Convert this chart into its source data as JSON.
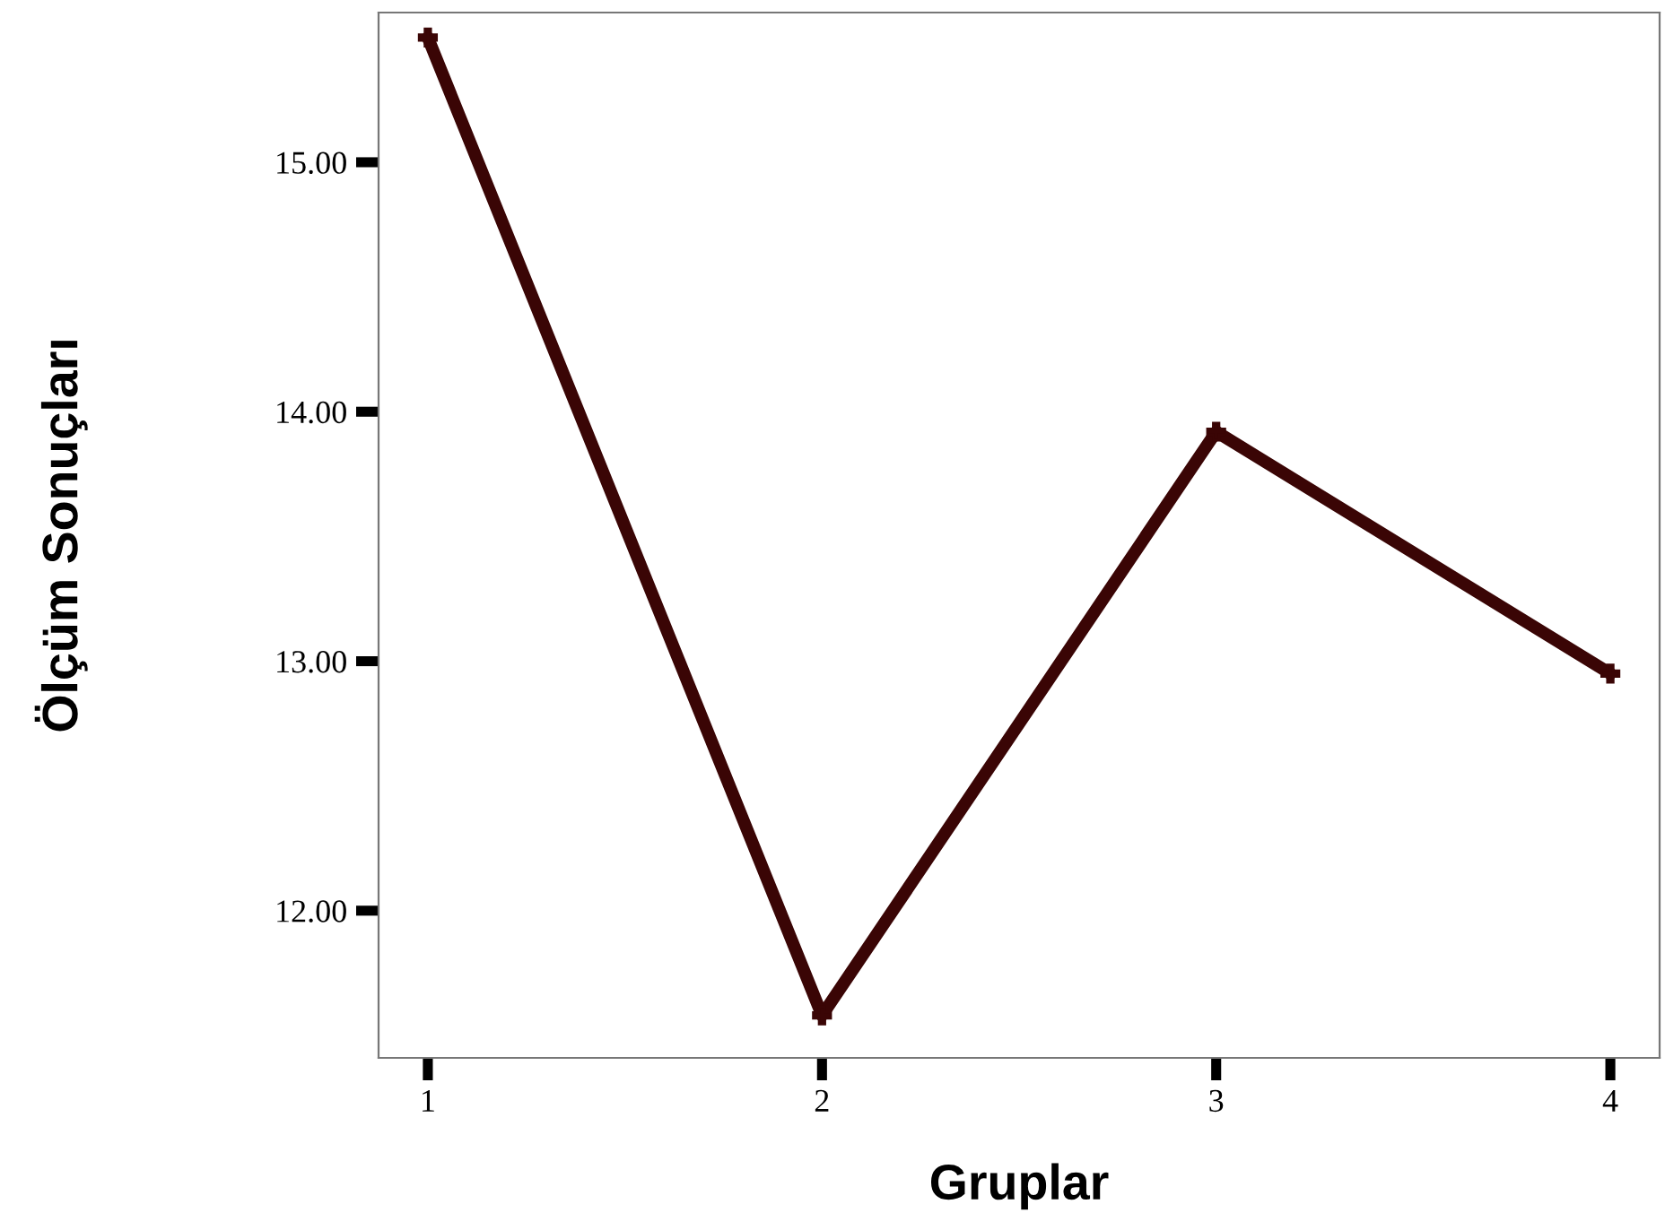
{
  "chart_data": {
    "type": "line",
    "xlabel": "Gruplar",
    "ylabel": "Ölçüm Sonuçları",
    "x": [
      1,
      2,
      3,
      4
    ],
    "series": [
      {
        "color": "#3a0505",
        "values": [
          15.5,
          11.58,
          13.92,
          12.95
        ]
      }
    ],
    "xlim": [
      0.875,
      4.125
    ],
    "xticks": [
      1,
      2,
      3,
      4
    ],
    "ylim": [
      11.41,
      15.6
    ],
    "yticks": [
      {
        "value": 12,
        "label": "12.00"
      },
      {
        "value": 13,
        "label": "13.00"
      },
      {
        "value": 14,
        "label": "14.00"
      },
      {
        "value": 15,
        "label": "15.00"
      }
    ],
    "grid": false,
    "marker": "cross",
    "line_style": "solid"
  }
}
